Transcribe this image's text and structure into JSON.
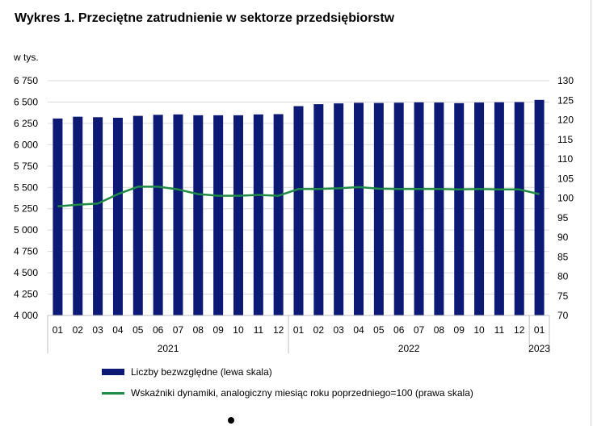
{
  "chart_data": {
    "type": "bar+line",
    "title": "Wykres 1. Przeciętne zatrudnienie w sektorze przedsiębiorstw",
    "left_axis_unit": "w tys.",
    "left_ylim": [
      4000,
      6750
    ],
    "left_ticks": [
      "4 000",
      "4 250",
      "4 500",
      "4 750",
      "5 000",
      "5 250",
      "5 500",
      "5 750",
      "6 000",
      "6 250",
      "6 500",
      "6 750"
    ],
    "right_ylim": [
      70,
      130
    ],
    "right_ticks": [
      "70",
      "75",
      "80",
      "85",
      "90",
      "95",
      "100",
      "105",
      "110",
      "115",
      "120",
      "125",
      "130"
    ],
    "categories": [
      "01",
      "02",
      "03",
      "04",
      "05",
      "06",
      "07",
      "08",
      "09",
      "10",
      "11",
      "12",
      "01",
      "02",
      "03",
      "04",
      "05",
      "06",
      "07",
      "08",
      "09",
      "10",
      "11",
      "12",
      "01"
    ],
    "years": [
      {
        "label": "2021",
        "count": 12
      },
      {
        "label": "2022",
        "count": 12
      },
      {
        "label": "2023",
        "count": 1
      }
    ],
    "series": [
      {
        "name": "Liczby bezwzględne (lewa skala)",
        "type": "bar",
        "axis": "left",
        "color": "#0c1a75",
        "values": [
          6307,
          6328,
          6322,
          6316,
          6338,
          6350,
          6355,
          6345,
          6345,
          6345,
          6355,
          6358,
          6452,
          6475,
          6484,
          6491,
          6489,
          6492,
          6496,
          6494,
          6487,
          6494,
          6497,
          6499,
          6525
        ]
      },
      {
        "name": "Wskaźniki dynamiki, analogiczny miesiąc roku poprzedniego=100 (prawa skala)",
        "type": "line",
        "axis": "right",
        "color": "#1e8c45",
        "values": [
          97.9,
          98.3,
          98.6,
          101.0,
          102.9,
          102.9,
          102.2,
          101.0,
          100.6,
          100.6,
          100.8,
          100.6,
          102.3,
          102.3,
          102.5,
          102.8,
          102.4,
          102.3,
          102.3,
          102.3,
          102.2,
          102.3,
          102.2,
          102.2,
          101.0
        ]
      }
    ],
    "legend": [
      "Liczby bezwzględne (lewa skala)",
      "Wskaźniki dynamiki, analogiczny miesiąc roku poprzedniego=100 (prawa skala)"
    ],
    "legend_position": "bottom"
  }
}
